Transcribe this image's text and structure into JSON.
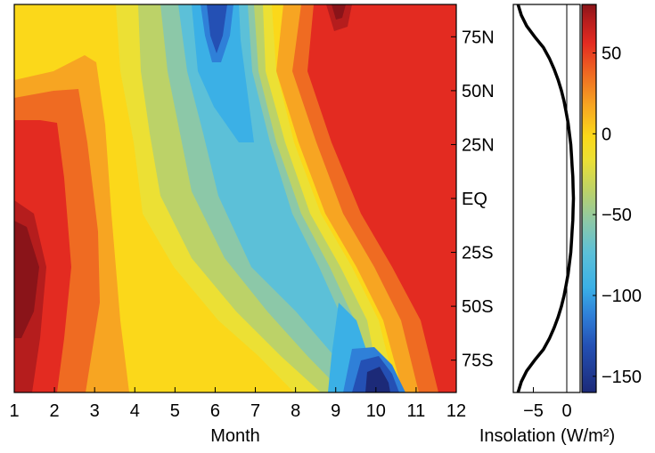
{
  "chart_data": [
    {
      "type": "heatmap",
      "title": "",
      "xlabel": "Month",
      "ylabel": "",
      "x": [
        1,
        2,
        3,
        4,
        5,
        6,
        7,
        8,
        9,
        10,
        11,
        12
      ],
      "x_tick_labels": [
        "1",
        "2",
        "3",
        "4",
        "5",
        "6",
        "7",
        "8",
        "9",
        "10",
        "11",
        "12"
      ],
      "xlim": [
        1,
        12
      ],
      "y_ticks": [
        {
          "label": "75N",
          "lat": 75
        },
        {
          "label": "50N",
          "lat": 50
        },
        {
          "label": "25N",
          "lat": 25
        },
        {
          "label": "EQ",
          "lat": 0
        },
        {
          "label": "25S",
          "lat": -25
        },
        {
          "label": "50S",
          "lat": -50
        },
        {
          "label": "75S",
          "lat": -75
        }
      ],
      "ylim": [
        -90,
        90
      ],
      "y_axis_side": "right",
      "grid": false,
      "z_range": [
        -160,
        80
      ]
    },
    {
      "type": "line",
      "xlabel": "Insolation (W/m²)",
      "x_ticks": [
        {
          "label": "−5",
          "value": -5
        },
        {
          "label": "0",
          "value": 0
        }
      ],
      "xlim": [
        -8,
        2
      ],
      "ylim": [
        -90,
        90
      ],
      "zero_line": true,
      "lat": [
        -90,
        -85,
        -80,
        -75,
        -70,
        -65,
        -60,
        -55,
        -50,
        -45,
        -40,
        -35,
        -30,
        -25,
        -20,
        -15,
        -10,
        -5,
        0,
        5,
        10,
        15,
        20,
        25,
        30,
        35,
        40,
        45,
        50,
        55,
        60,
        65,
        70,
        75,
        80,
        85,
        90
      ],
      "values": [
        -7.3,
        -6.8,
        -6.0,
        -4.8,
        -3.5,
        -2.6,
        -1.9,
        -1.3,
        -0.8,
        -0.4,
        -0.1,
        0.2,
        0.4,
        0.6,
        0.7,
        0.8,
        0.9,
        0.95,
        1.0,
        0.95,
        0.9,
        0.8,
        0.7,
        0.6,
        0.4,
        0.2,
        -0.1,
        -0.4,
        -0.8,
        -1.3,
        -1.9,
        -2.6,
        -3.5,
        -4.8,
        -6.0,
        -6.8,
        -7.3
      ]
    },
    {
      "type": "colorbar",
      "zlim": [
        -160,
        80
      ],
      "ticks": [
        {
          "label": "50",
          "value": 50
        },
        {
          "label": "0",
          "value": 0
        },
        {
          "label": "−50",
          "value": -50
        },
        {
          "label": "−100",
          "value": -100
        },
        {
          "label": "−150",
          "value": -150
        }
      ],
      "colors": [
        "#1c2a78",
        "#2450b4",
        "#2f80d8",
        "#3bb0e6",
        "#5cc0d8",
        "#8cc8a8",
        "#bcd268",
        "#ece034",
        "#fbd81a",
        "#f7a522",
        "#ef6b22",
        "#e32b21",
        "#b51d1d",
        "#8a1419"
      ]
    }
  ]
}
